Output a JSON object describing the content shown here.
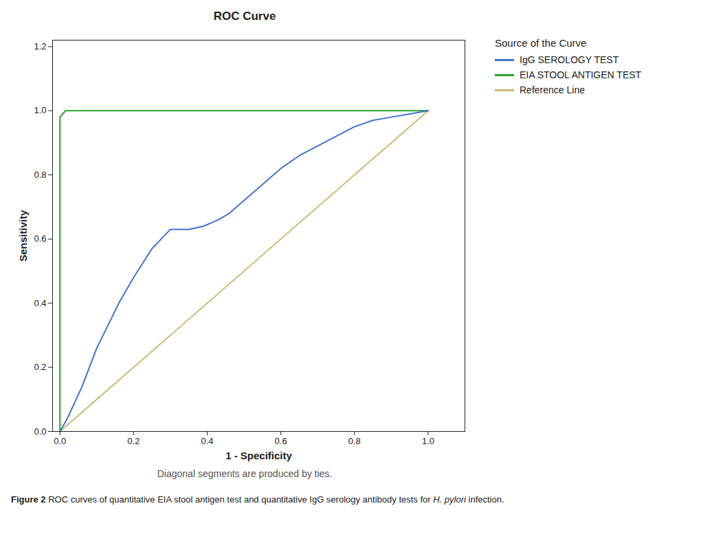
{
  "chart_data": {
    "type": "line",
    "title": "ROC Curve",
    "subtitle": "Diagonal segments are produced by ties.",
    "caption": [
      {
        "text": "Figure 2",
        "style": "bold"
      },
      {
        "text": " ROC curves of quantitative EIA stool antigen test and quantitative IgG serology antibody tests for ",
        "style": "normal"
      },
      {
        "text": "H. pylori",
        "style": "italic"
      },
      {
        "text": " infection.",
        "style": "normal"
      }
    ],
    "xlabel": "1 - Specificity",
    "ylabel": "Sensitivity",
    "xlim": [
      -0.02,
      1.1
    ],
    "ylim": [
      0.0,
      1.22
    ],
    "xticks": [
      {
        "value": 0.0,
        "label": "0.0"
      },
      0.2,
      0.4,
      0.6,
      0.8,
      {
        "value": 1.0,
        "label": "1.0"
      }
    ],
    "yticks": [
      {
        "value": 0.0,
        "label": "0.0"
      },
      0.2,
      0.4,
      0.6,
      0.8,
      {
        "value": 1.0,
        "label": "1.0"
      },
      1.2
    ],
    "grid": false,
    "legend": "right",
    "legend_title": "Source of the Curve",
    "series": [
      {
        "name": "IgG SEROLOGY TEST",
        "color": "#4472c4",
        "x": [
          0.0,
          0.01,
          0.02,
          0.04,
          0.06,
          0.08,
          0.1,
          0.13,
          0.16,
          0.2,
          0.25,
          0.3,
          0.35,
          0.39,
          0.41,
          0.43,
          0.46,
          0.5,
          0.55,
          0.6,
          0.65,
          0.7,
          0.75,
          0.8,
          0.85,
          0.9,
          0.95,
          1.0
        ],
        "values": [
          0.0,
          0.02,
          0.04,
          0.09,
          0.14,
          0.2,
          0.26,
          0.33,
          0.4,
          0.48,
          0.57,
          0.63,
          0.63,
          0.64,
          0.65,
          0.66,
          0.68,
          0.72,
          0.77,
          0.82,
          0.86,
          0.89,
          0.92,
          0.95,
          0.97,
          0.98,
          0.99,
          1.0
        ]
      },
      {
        "name": "EIA STOOL ANTIGEN TEST",
        "color": "#2ba02b",
        "x": [
          0.0,
          0.0,
          0.015,
          1.0
        ],
        "values": [
          0.0,
          0.98,
          1.0,
          1.0
        ]
      },
      {
        "name": "Reference Line",
        "color": "#c8bb7a",
        "x": [
          0.0,
          1.0
        ],
        "values": [
          0.0,
          1.0
        ]
      }
    ]
  }
}
